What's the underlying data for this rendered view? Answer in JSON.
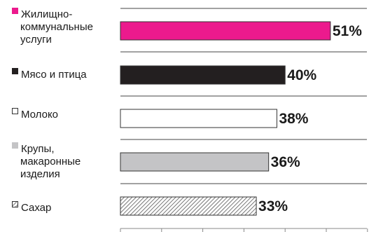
{
  "chart_data": {
    "type": "bar",
    "orientation": "horizontal",
    "categories": [
      "Жилищно-коммунальные услуги",
      "Мясо и птица",
      "Молоко",
      "Крупы, макаронные изделия",
      "Сахар"
    ],
    "category_lines": [
      [
        "Жилищно-",
        "коммунальные",
        "услуги"
      ],
      [
        "Мясо и птица"
      ],
      [
        "Молоко"
      ],
      [
        "Крупы,",
        "макаронные",
        "изделия"
      ],
      [
        "Сахар"
      ]
    ],
    "values": [
      51,
      40,
      38,
      36,
      33
    ],
    "value_labels": [
      "51%",
      "40%",
      "38%",
      "36%",
      "33%"
    ],
    "bar_colors": [
      "#ec1a8d",
      "#231f20",
      "#ffffff",
      "#c4c4c6",
      "hatched"
    ],
    "xlim": [
      0,
      60
    ],
    "grid": false,
    "legend": "markers beside category labels"
  }
}
